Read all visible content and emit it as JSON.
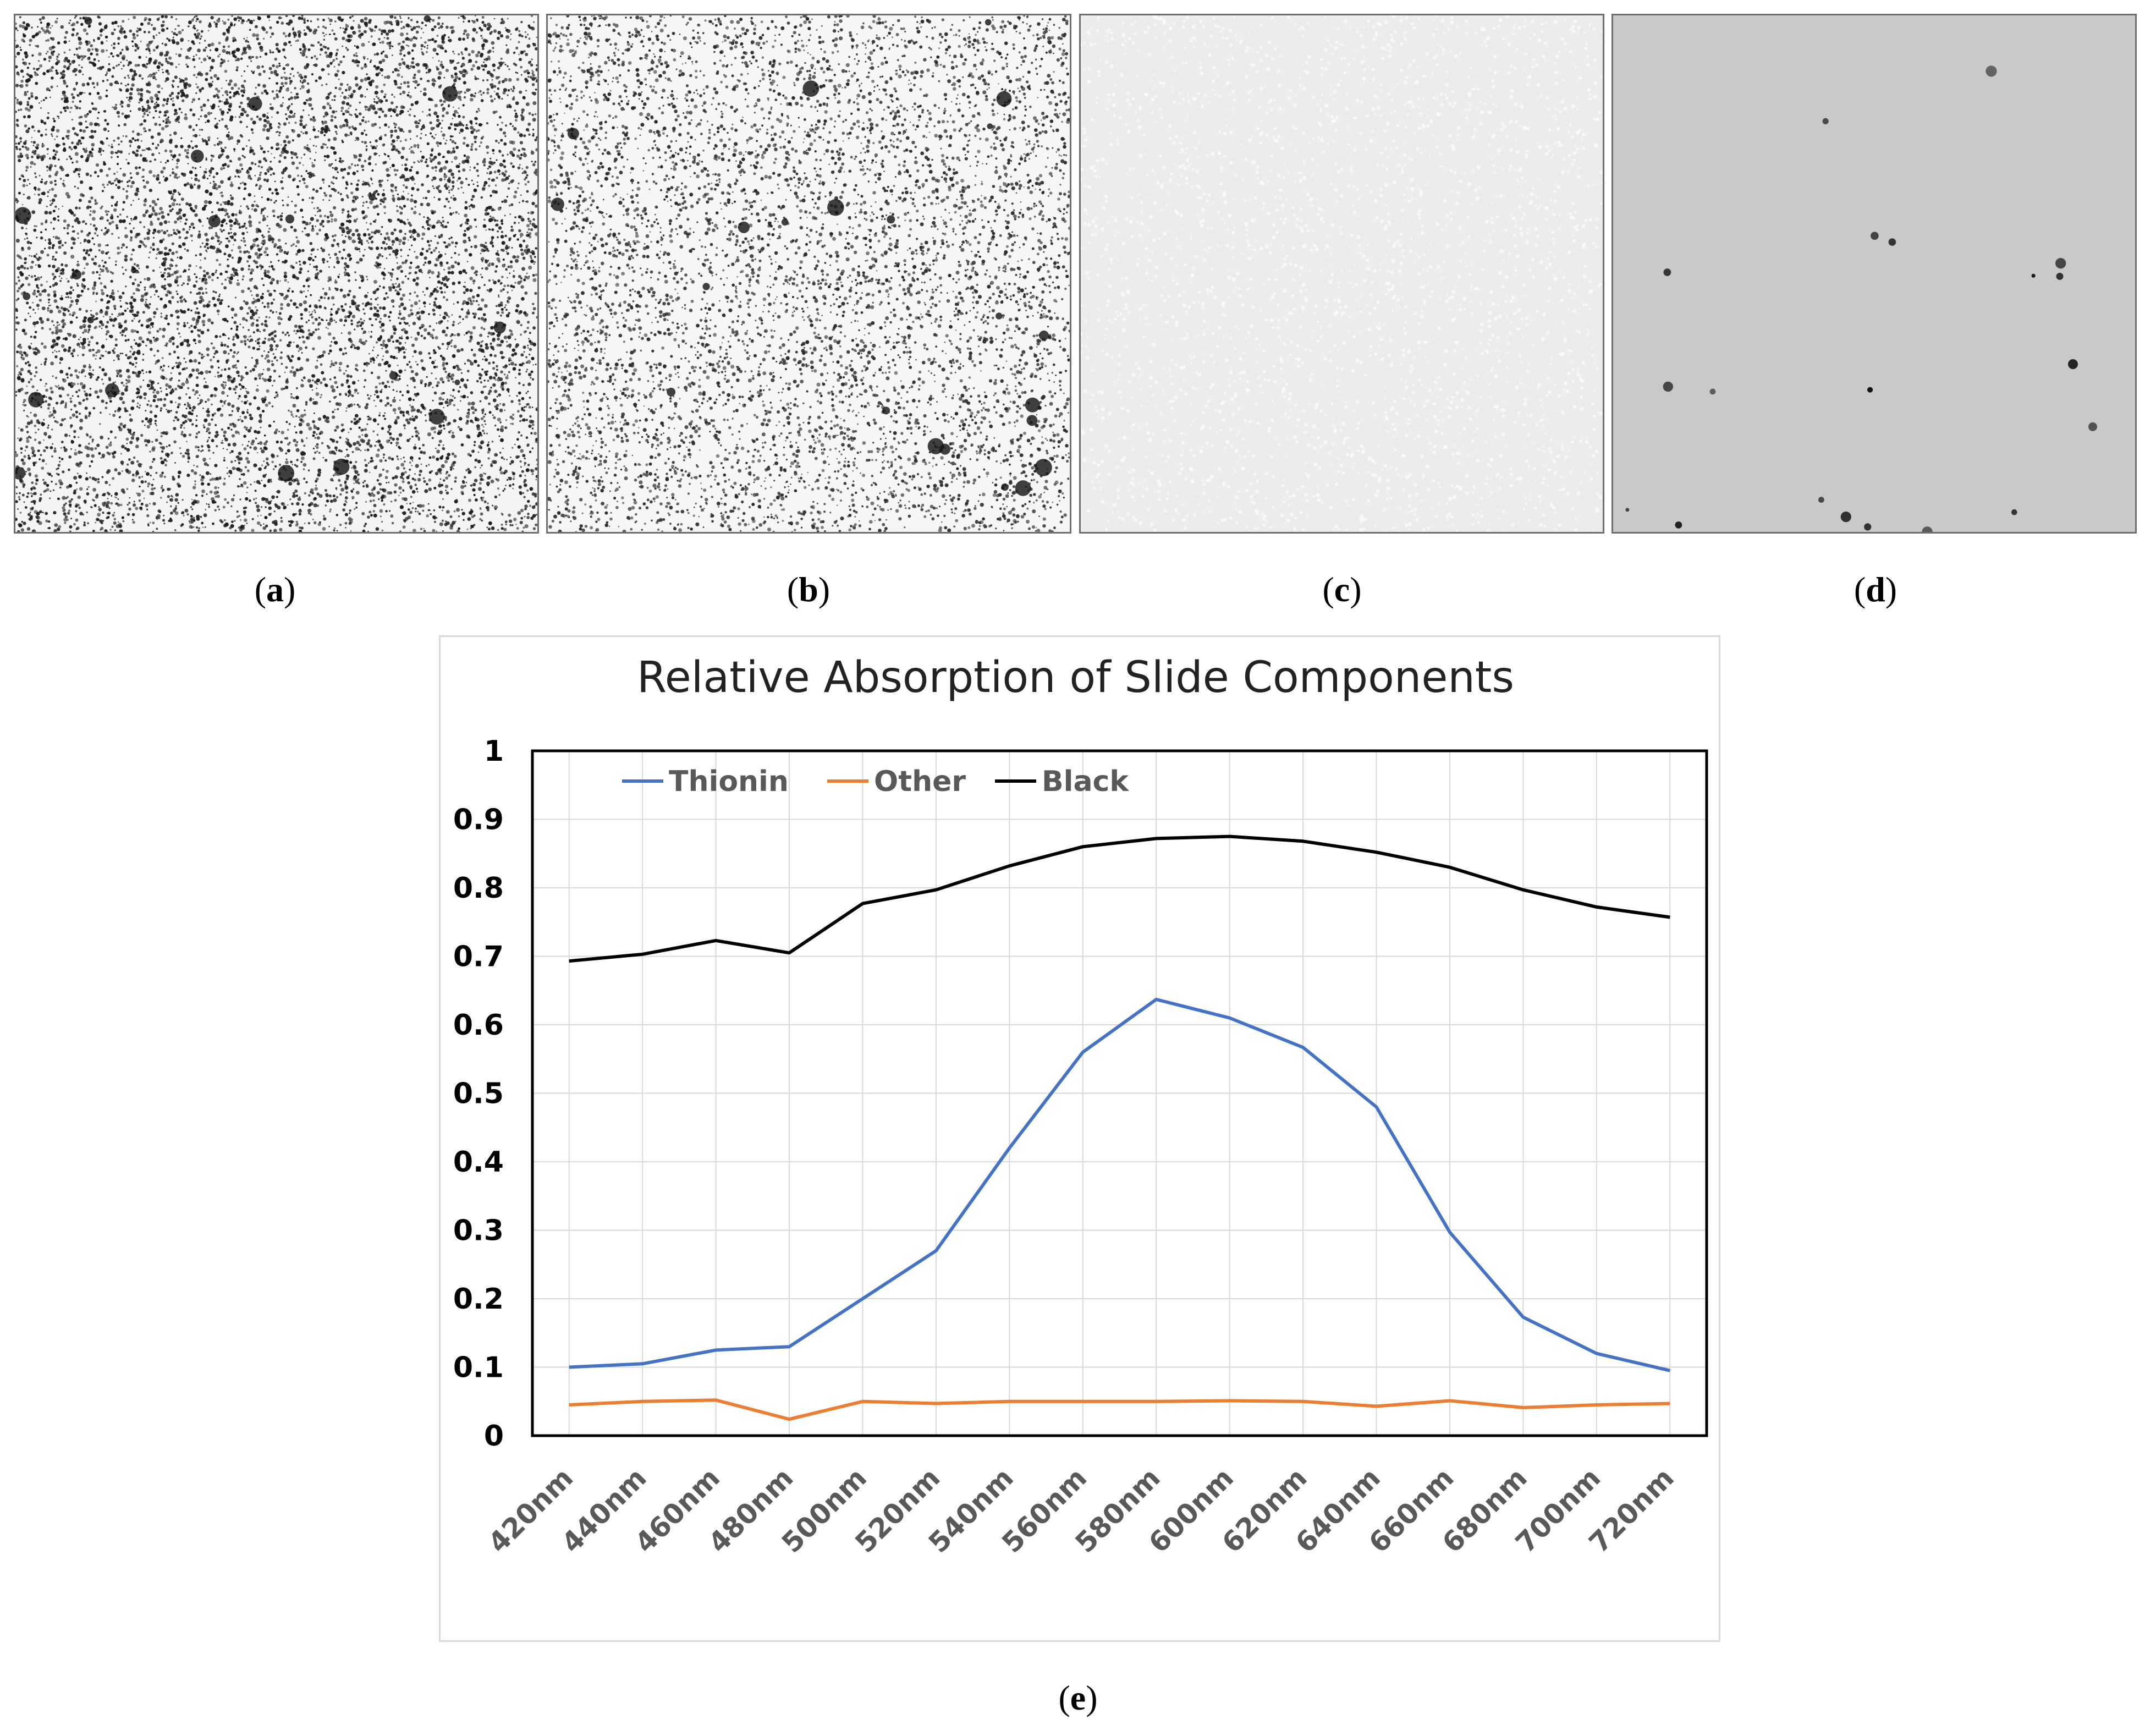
{
  "panels": [
    {
      "label": "a",
      "background": "#f4f4f4",
      "dot_color": "#1e1e1e",
      "density": "very high"
    },
    {
      "label": "b",
      "background": "#f6f6f6",
      "dot_color": "#2a2a2a",
      "density": "high"
    },
    {
      "label": "c",
      "background": "#ececec",
      "dot_color": "#fafafa",
      "density": "faint"
    },
    {
      "label": "d",
      "background": "#c9c9c9",
      "dot_color": "#111111",
      "density": "sparse"
    }
  ],
  "chart_label": "e",
  "chart_data": {
    "type": "line",
    "title": "Relative Absorption of Slide Components",
    "xlabel": "",
    "ylabel": "",
    "categories": [
      "420nm",
      "440nm",
      "460nm",
      "480nm",
      "500nm",
      "520nm",
      "540nm",
      "560nm",
      "580nm",
      "600nm",
      "620nm",
      "640nm",
      "660nm",
      "680nm",
      "700nm",
      "720nm"
    ],
    "ylim": [
      0,
      1
    ],
    "yticks": [
      "0",
      "0.1",
      "0.2",
      "0.3",
      "0.4",
      "0.5",
      "0.6",
      "0.7",
      "0.8",
      "0.9",
      "1"
    ],
    "grid": true,
    "legend_position": "top-left inside",
    "series": [
      {
        "name": "Thionin",
        "color": "#4472c4",
        "values": [
          0.1,
          0.105,
          0.125,
          0.13,
          0.2,
          0.27,
          0.42,
          0.56,
          0.637,
          0.61,
          0.567,
          0.48,
          0.297,
          0.173,
          0.12,
          0.095
        ]
      },
      {
        "name": "Other",
        "color": "#ed7d31",
        "values": [
          0.045,
          0.05,
          0.052,
          0.024,
          0.05,
          0.047,
          0.05,
          0.05,
          0.05,
          0.051,
          0.05,
          0.043,
          0.051,
          0.041,
          0.045,
          0.047
        ]
      },
      {
        "name": "Black",
        "color": "#000000",
        "values": [
          0.693,
          0.703,
          0.723,
          0.705,
          0.777,
          0.797,
          0.832,
          0.86,
          0.872,
          0.875,
          0.868,
          0.852,
          0.83,
          0.797,
          0.772,
          0.757
        ]
      }
    ]
  }
}
